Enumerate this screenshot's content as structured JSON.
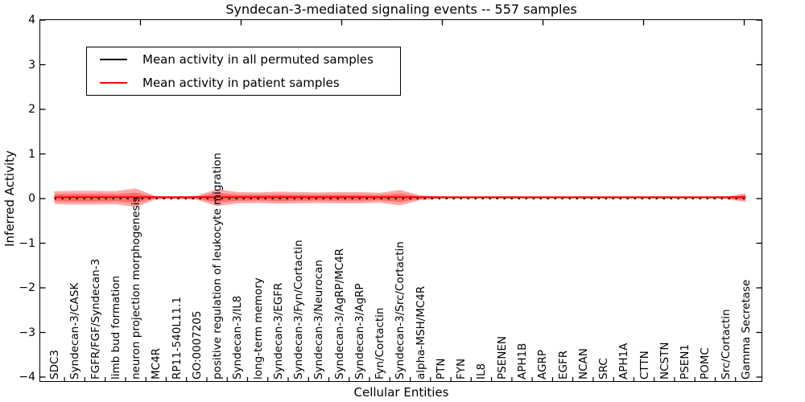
{
  "figure": {
    "title": "Syndecan-3-mediated signaling events -- 557 samples",
    "xlabel": "Cellular Entities",
    "ylabel": "Inferred Activity"
  },
  "legend": {
    "items": [
      {
        "label": "Mean activity in all permuted samples",
        "color": "#000000"
      },
      {
        "label": "Mean activity in patient samples",
        "color": "#ff0000"
      }
    ]
  },
  "chart_data": {
    "type": "line",
    "title": "Syndecan-3-mediated signaling events -- 557 samples",
    "xlabel": "Cellular Entities",
    "ylabel": "Inferred Activity",
    "ylim": [
      -4,
      4
    ],
    "yticks": [
      4,
      3,
      2,
      1,
      0,
      -1,
      -2,
      -3,
      -4
    ],
    "ytick_labels": [
      "4",
      "3",
      "2",
      "1",
      "0",
      "−1",
      "−2",
      "−3",
      "−4"
    ],
    "grid": false,
    "legend_position": "upper left",
    "categories": [
      "SDC3",
      "Syndecan-3/CASK",
      "FGFR/FGF/Syndecan-3",
      "limb bud formation",
      "neuron projection morphogenesis",
      "MC4R",
      "RP11-540L11.1",
      "GO:0007205",
      "positive regulation of leukocyte migration",
      "Syndecan-3/IL8",
      "long-term memory",
      "Syndecan-3/EGFR",
      "Syndecan-3/Fyn/Cortactin",
      "Syndecan-3/Neurocan",
      "Syndecan-3/AgRP/MC4R",
      "Syndecan-3/AgRP",
      "Fyn/Cortactin",
      "Syndecan-3/Src/Cortactin",
      "alpha-MSH/MC4R",
      "PTN",
      "FYN",
      "IL8",
      "PSENEN",
      "APH1B",
      "AGRP",
      "EGFR",
      "NCAN",
      "SRC",
      "APH1A",
      "CTTN",
      "NCSTN",
      "PSEN1",
      "POMC",
      "Src/Cortactin",
      "Gamma Secretase"
    ],
    "series": [
      {
        "name": "Mean activity in all permuted samples",
        "color": "#000000",
        "linestyle": "dotted",
        "values": [
          0,
          0,
          0,
          0,
          0,
          0,
          0,
          0,
          0,
          0,
          0,
          0,
          0,
          0,
          0,
          0,
          0,
          0,
          0,
          0,
          0,
          0,
          0,
          0,
          0,
          0,
          0,
          0,
          0,
          0,
          0,
          0,
          0,
          0,
          0
        ]
      },
      {
        "name": "Mean activity in patient samples",
        "color": "#ff0000",
        "linestyle": "solid",
        "values": [
          0.03,
          0.03,
          0.03,
          0.03,
          0.03,
          0.03,
          0.03,
          0.03,
          0.03,
          0.03,
          0.03,
          0.03,
          0.03,
          0.03,
          0.03,
          0.03,
          0.03,
          0.03,
          0.03,
          0.03,
          0.03,
          0.03,
          0.03,
          0.03,
          0.03,
          0.03,
          0.03,
          0.03,
          0.03,
          0.03,
          0.03,
          0.03,
          0.03,
          0.03,
          0.03
        ]
      }
    ],
    "band": {
      "description": "red shaded spread around the patient mean (two stacked translucent layers)",
      "color": "#ff0000",
      "opacity": 0.35,
      "center": 0.02,
      "outer_halfwidth": [
        0.144,
        0.153,
        0.153,
        0.144,
        0.207,
        0.036,
        0.027,
        0.045,
        0.189,
        0.126,
        0.117,
        0.135,
        0.126,
        0.117,
        0.126,
        0.126,
        0.108,
        0.171,
        0.054,
        0.027,
        0.022,
        0.022,
        0.022,
        0.022,
        0.022,
        0.022,
        0.022,
        0.022,
        0.022,
        0.022,
        0.022,
        0.022,
        0.022,
        0.027,
        0.099
      ],
      "inner_halfwidth": [
        0.079,
        0.084,
        0.084,
        0.079,
        0.114,
        0.02,
        0.015,
        0.025,
        0.104,
        0.069,
        0.064,
        0.074,
        0.069,
        0.064,
        0.069,
        0.069,
        0.059,
        0.094,
        0.03,
        0.015,
        0.012,
        0.012,
        0.012,
        0.012,
        0.012,
        0.012,
        0.012,
        0.012,
        0.012,
        0.012,
        0.012,
        0.012,
        0.012,
        0.015,
        0.054
      ]
    }
  }
}
